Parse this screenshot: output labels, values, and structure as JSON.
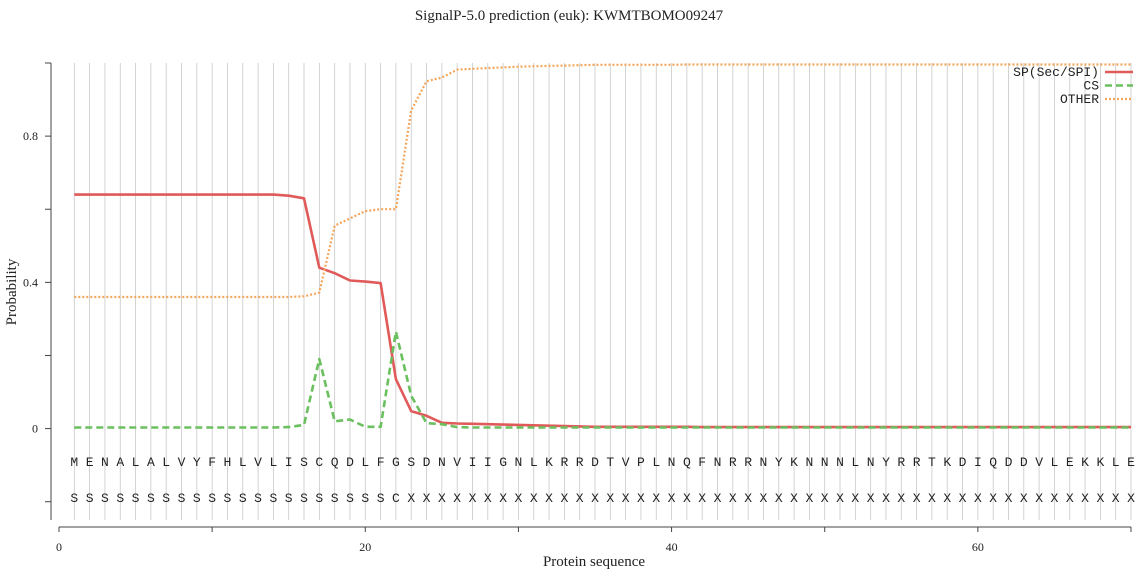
{
  "chart_data": {
    "type": "line",
    "title": "SignalP-5.0 prediction (euk):  KWMTBOMO09247",
    "xlabel": "Protein sequence",
    "ylabel": "Probability",
    "xlim": [
      0,
      70
    ],
    "ylim": [
      -0.25,
      1.0
    ],
    "x_ticks": [
      0,
      20,
      40,
      60
    ],
    "y_ticks": [
      0,
      0.4,
      0.8
    ],
    "y_tick_labels": [
      "0",
      "0.4",
      "0.8"
    ],
    "legend_position": "top-right",
    "sequence": [
      "M",
      "E",
      "N",
      "A",
      "L",
      "A",
      "L",
      "V",
      "Y",
      "F",
      "H",
      "L",
      "V",
      "L",
      "I",
      "S",
      "C",
      "Q",
      "D",
      "L",
      "F",
      "G",
      "S",
      "D",
      "N",
      "V",
      "I",
      "I",
      "G",
      "N",
      "L",
      "K",
      "R",
      "R",
      "D",
      "T",
      "V",
      "P",
      "L",
      "N",
      "Q",
      "F",
      "N",
      "R",
      "R",
      "N",
      "Y",
      "K",
      "N",
      "N",
      "N",
      "L",
      "N",
      "Y",
      "R",
      "R",
      "T",
      "K",
      "D",
      "I",
      "Q",
      "D",
      "D",
      "V",
      "L",
      "E",
      "K",
      "K",
      "L",
      "E"
    ],
    "annotation": [
      "S",
      "S",
      "S",
      "S",
      "S",
      "S",
      "S",
      "S",
      "S",
      "S",
      "S",
      "S",
      "S",
      "S",
      "S",
      "S",
      "S",
      "S",
      "S",
      "S",
      "S",
      "C",
      "X",
      "X",
      "X",
      "X",
      "X",
      "X",
      "X",
      "X",
      "X",
      "X",
      "X",
      "X",
      "X",
      "X",
      "X",
      "X",
      "X",
      "X",
      "X",
      "X",
      "X",
      "X",
      "X",
      "X",
      "X",
      "X",
      "X",
      "X",
      "X",
      "X",
      "X",
      "X",
      "X",
      "X",
      "X",
      "X",
      "X",
      "X",
      "X",
      "X",
      "X",
      "X",
      "X",
      "X",
      "X",
      "X",
      "X",
      "X"
    ],
    "series": [
      {
        "name": "SP(Sec/SPI)",
        "color": "#e05a5a",
        "style": "solid",
        "values": [
          0.64,
          0.64,
          0.64,
          0.64,
          0.64,
          0.64,
          0.64,
          0.64,
          0.64,
          0.64,
          0.64,
          0.64,
          0.64,
          0.64,
          0.637,
          0.63,
          0.44,
          0.425,
          0.405,
          0.402,
          0.398,
          0.135,
          0.048,
          0.035,
          0.016,
          0.014,
          0.013,
          0.012,
          0.011,
          0.01,
          0.009,
          0.008,
          0.007,
          0.006,
          0.005,
          0.005,
          0.005,
          0.005,
          0.005,
          0.005,
          0.005,
          0.004,
          0.004,
          0.004,
          0.004,
          0.004,
          0.004,
          0.004,
          0.004,
          0.004,
          0.004,
          0.004,
          0.004,
          0.004,
          0.004,
          0.004,
          0.004,
          0.004,
          0.004,
          0.004,
          0.004,
          0.004,
          0.004,
          0.004,
          0.004,
          0.004,
          0.004,
          0.004,
          0.004,
          0.004
        ]
      },
      {
        "name": "CS",
        "color": "#6abf5e",
        "style": "dashed",
        "values": [
          0.003,
          0.003,
          0.003,
          0.003,
          0.003,
          0.003,
          0.003,
          0.003,
          0.003,
          0.003,
          0.003,
          0.003,
          0.003,
          0.003,
          0.004,
          0.01,
          0.19,
          0.02,
          0.025,
          0.005,
          0.005,
          0.265,
          0.09,
          0.015,
          0.012,
          0.004,
          0.003,
          0.003,
          0.003,
          0.003,
          0.003,
          0.003,
          0.003,
          0.003,
          0.003,
          0.003,
          0.003,
          0.003,
          0.003,
          0.003,
          0.003,
          0.003,
          0.003,
          0.003,
          0.003,
          0.003,
          0.003,
          0.003,
          0.003,
          0.003,
          0.003,
          0.003,
          0.003,
          0.003,
          0.003,
          0.003,
          0.003,
          0.003,
          0.003,
          0.003,
          0.003,
          0.003,
          0.003,
          0.003,
          0.003,
          0.003,
          0.003,
          0.003,
          0.003,
          0.003
        ]
      },
      {
        "name": "OTHER",
        "color": "#f5a55a",
        "style": "dotted",
        "values": [
          0.36,
          0.36,
          0.36,
          0.36,
          0.36,
          0.36,
          0.36,
          0.36,
          0.36,
          0.36,
          0.36,
          0.36,
          0.36,
          0.36,
          0.36,
          0.362,
          0.372,
          0.555,
          0.575,
          0.595,
          0.6,
          0.6,
          0.87,
          0.95,
          0.96,
          0.982,
          0.984,
          0.986,
          0.988,
          0.99,
          0.991,
          0.992,
          0.993,
          0.994,
          0.995,
          0.995,
          0.995,
          0.995,
          0.995,
          0.995,
          0.996,
          0.996,
          0.996,
          0.996,
          0.996,
          0.996,
          0.996,
          0.996,
          0.996,
          0.996,
          0.996,
          0.996,
          0.996,
          0.996,
          0.996,
          0.996,
          0.996,
          0.996,
          0.996,
          0.996,
          0.996,
          0.996,
          0.996,
          0.996,
          0.996,
          0.996,
          0.996,
          0.996,
          0.996,
          0.996
        ]
      }
    ]
  }
}
